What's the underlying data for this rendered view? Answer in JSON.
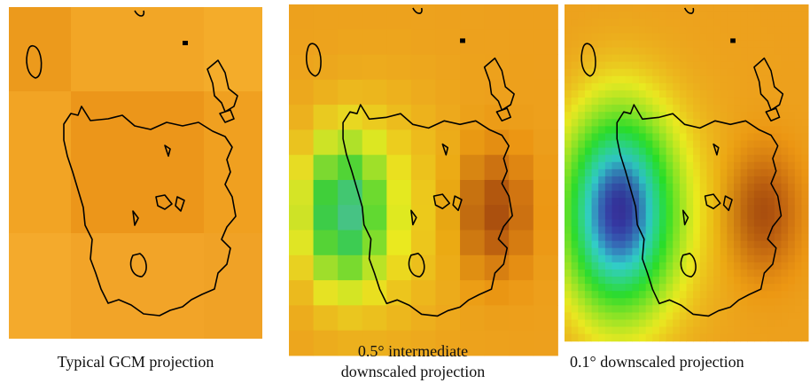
{
  "panels": [
    {
      "caption": [
        "Typical GCM projection"
      ]
    },
    {
      "caption": [
        "0.5° intermediate",
        "downscaled projection"
      ]
    },
    {
      "caption": [
        "0.1° downscaled projection"
      ]
    }
  ]
}
